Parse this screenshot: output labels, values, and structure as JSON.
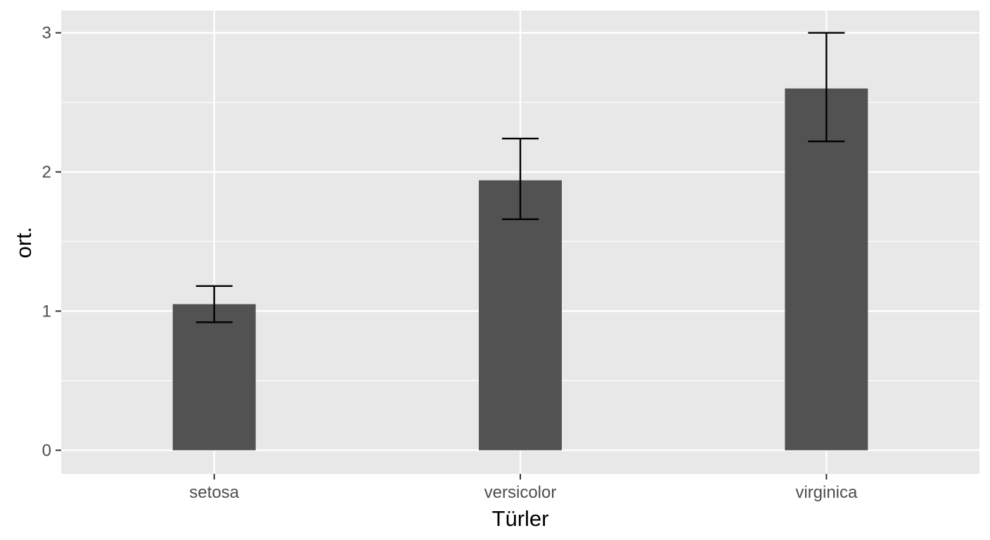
{
  "chart_data": {
    "type": "bar",
    "categories": [
      "setosa",
      "versicolor",
      "virginica"
    ],
    "values": [
      1.05,
      1.94,
      2.6
    ],
    "error_bars": {
      "lower": [
        0.92,
        1.66,
        2.22
      ],
      "upper": [
        1.18,
        2.24,
        3.0
      ]
    },
    "xlabel": "Türler",
    "ylabel": "ort.",
    "ylim": [
      -0.17,
      3.16
    ],
    "yticks": [
      0,
      1,
      2,
      3
    ],
    "ytick_labels": [
      "0",
      "1",
      "2",
      "3"
    ],
    "grid": true,
    "legend": "none"
  },
  "colors": {
    "panel_background": "#e8e8e8",
    "grid": "#ffffff",
    "bar_fill": "#525252",
    "error_bar": "#000000",
    "tick_label": "#4d4d4d",
    "tick_mark": "#333333",
    "axis_title": "#000000"
  }
}
